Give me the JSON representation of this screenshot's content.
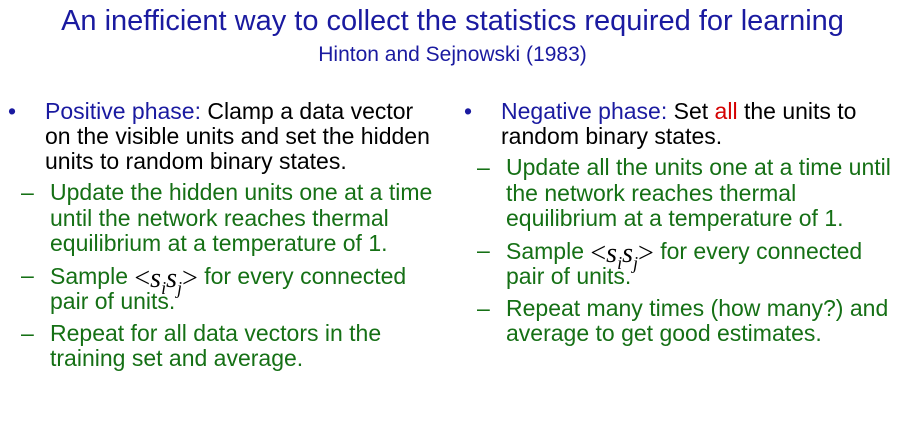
{
  "title": "An inefficient way to collect the statistics required for learning",
  "subtitle": "Hinton and Sejnowski (1983)",
  "bullet_symbol": "•",
  "dash_symbol": "–",
  "positive": {
    "heading": "Positive phase",
    "colon": ":",
    "text": " Clamp a data vector on the visible units and set the hidden units to random binary states.",
    "sub1": "Update the hidden units one at a time until the network reaches thermal equilibrium at a temperature of 1.",
    "sub2_before": "Sample ",
    "sub2_after": " for every connected pair of units.",
    "sub3": "Repeat for all data vectors in the training set and average."
  },
  "negative": {
    "heading": "Negative phase",
    "colon": ":",
    "text_before": " Set ",
    "emph": "all",
    "text_after": " the units to random binary states.",
    "sub1": "Update all the units one at a time until the network reaches thermal equilibrium at a temperature of 1.",
    "sub2_before": "Sample ",
    "sub2_after": " for every connected pair of units.",
    "sub3": "Repeat many times (how many?) and average to get good estimates."
  },
  "math": {
    "lt": "<",
    "s": "s",
    "i": "i",
    "j": "j",
    "gt": ">"
  },
  "colors": {
    "title": "#1a1aa0",
    "green": "#157015",
    "red": "#d40000"
  }
}
